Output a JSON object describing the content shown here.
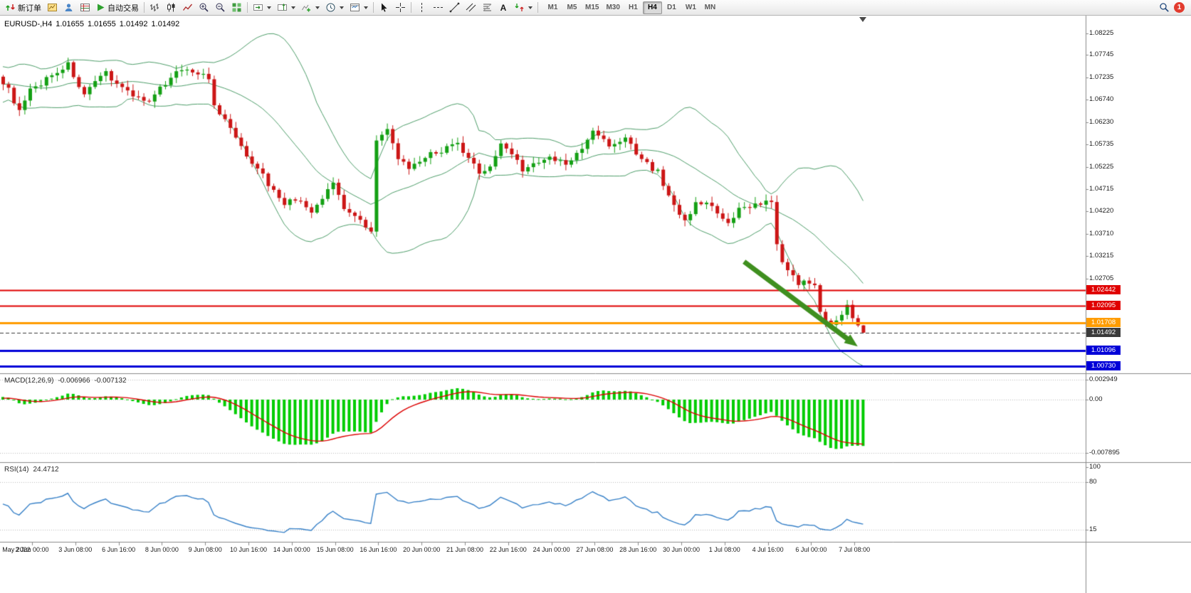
{
  "app": {
    "name": "MetaTrader"
  },
  "toolbar": {
    "new_order": "新订单",
    "auto_trading": "自动交易",
    "text_tool": "A",
    "timeframes": [
      "M1",
      "M5",
      "M15",
      "M30",
      "H1",
      "H4",
      "D1",
      "W1",
      "MN"
    ],
    "active_timeframe": "H4",
    "notification_badge": "1"
  },
  "chart": {
    "symbol_period": "EURUSD-,H4",
    "open": "1.01655",
    "high": "1.01655",
    "low": "1.01492",
    "close": "1.01492",
    "price_axis": [
      "1.08225",
      "1.07745",
      "1.07235",
      "1.06740",
      "1.06230",
      "1.05735",
      "1.05225",
      "1.04715",
      "1.04220",
      "1.03710",
      "1.03215",
      "1.02705"
    ],
    "levels": [
      {
        "label": "1.02442",
        "value": 1.02442,
        "color": "#e00000",
        "width": 2,
        "style": "solid",
        "kind": "resistance-line"
      },
      {
        "label": "1.02095",
        "value": 1.02095,
        "color": "#e00000",
        "width": 2,
        "style": "solid",
        "kind": "resistance-line"
      },
      {
        "label": "1.01708",
        "value": 1.01708,
        "color": "#ff9c00",
        "width": 3,
        "style": "solid",
        "kind": "key-level-line"
      },
      {
        "label": "1.01492",
        "value": 1.01492,
        "color": "#3a3a3a",
        "width": 1,
        "style": "dash",
        "kind": "current-price-line"
      },
      {
        "label": "1.01096",
        "value": 1.01096,
        "color": "#0000d8",
        "width": 3,
        "style": "solid",
        "kind": "support-line"
      },
      {
        "label": "1.00730",
        "value": 1.0073,
        "color": "#0000d8",
        "width": 3,
        "style": "solid",
        "kind": "support-line"
      }
    ]
  },
  "macd": {
    "name": "MACD(12,26,9)",
    "value_main": "-0.006966",
    "value_signal": "-0.007132",
    "axis": [
      "0.002949",
      "0.00",
      "-0.007895"
    ]
  },
  "rsi": {
    "name": "RSI(14)",
    "value": "24.4712",
    "axis": [
      "100",
      "80",
      "15"
    ]
  },
  "time_axis": [
    "May 2022",
    "2 Jun 00:00",
    "3 Jun 08:00",
    "6 Jun 16:00",
    "8 Jun 00:00",
    "9 Jun 08:00",
    "10 Jun 16:00",
    "14 Jun 00:00",
    "15 Jun 08:00",
    "16 Jun 16:00",
    "20 Jun 00:00",
    "21 Jun 08:00",
    "22 Jun 16:00",
    "24 Jun 00:00",
    "27 Jun 08:00",
    "28 Jun 16:00",
    "30 Jun 00:00",
    "1 Jul 08:00",
    "4 Jul 16:00",
    "6 Jul 00:00",
    "7 Jul 08:00"
  ],
  "colors": {
    "candle_up": "#14a014",
    "candle_down": "#cc1616",
    "bollinger": "#4e9e6a",
    "macd_histogram": "#00cc00",
    "macd_signal": "#dd0000",
    "rsi_line": "#3781c8",
    "grid_dotted": "#bcbcbc",
    "axis_line": "#8a8a8a",
    "arrow": "#3f8f1f"
  },
  "chart_data": {
    "type": "candlestick",
    "symbol": "EURUSD",
    "timeframe": "H4",
    "visible_price_range": [
      1.0055,
      1.0838
    ],
    "candle_count": 160,
    "last_ohlc": {
      "open": 1.01655,
      "high": 1.01655,
      "low": 1.01492,
      "close": 1.01492
    },
    "close_keyframes": [
      [
        0,
        1.0715
      ],
      [
        2,
        1.0672
      ],
      [
        3,
        1.0645
      ],
      [
        5,
        1.0692
      ],
      [
        9,
        1.073
      ],
      [
        12,
        1.0752
      ],
      [
        15,
        1.0682
      ],
      [
        19,
        1.0735
      ],
      [
        22,
        1.07
      ],
      [
        27,
        1.0665
      ],
      [
        31,
        1.0728
      ],
      [
        34,
        1.0745
      ],
      [
        38,
        1.0722
      ],
      [
        39,
        1.0655
      ],
      [
        42,
        1.061
      ],
      [
        44,
        1.0563
      ],
      [
        47,
        1.0522
      ],
      [
        49,
        1.0483
      ],
      [
        52,
        1.0442
      ],
      [
        55,
        1.0448
      ],
      [
        57,
        1.0415
      ],
      [
        61,
        1.0488
      ],
      [
        63,
        1.0432
      ],
      [
        67,
        1.0392
      ],
      [
        68,
        1.0382
      ],
      [
        69,
        1.058
      ],
      [
        71,
        1.0602
      ],
      [
        73,
        1.0545
      ],
      [
        75,
        1.0512
      ],
      [
        78,
        1.0545
      ],
      [
        81,
        1.056
      ],
      [
        84,
        1.0572
      ],
      [
        86,
        1.0537
      ],
      [
        88,
        1.0512
      ],
      [
        90,
        1.0522
      ],
      [
        92,
        1.0572
      ],
      [
        94,
        1.0555
      ],
      [
        96,
        1.0517
      ],
      [
        99,
        1.053
      ],
      [
        101,
        1.0542
      ],
      [
        104,
        1.0528
      ],
      [
        107,
        1.056
      ],
      [
        109,
        1.0606
      ],
      [
        111,
        1.058
      ],
      [
        113,
        1.057
      ],
      [
        115,
        1.0592
      ],
      [
        117,
        1.0546
      ],
      [
        119,
        1.0528
      ],
      [
        121,
        1.051
      ],
      [
        123,
        1.0455
      ],
      [
        125,
        1.042
      ],
      [
        126,
        1.0396
      ],
      [
        128,
        1.0446
      ],
      [
        130,
        1.044
      ],
      [
        132,
        1.0415
      ],
      [
        134,
        1.039
      ],
      [
        136,
        1.0425
      ],
      [
        138,
        1.0436
      ],
      [
        140,
        1.0441
      ],
      [
        142,
        1.0441
      ],
      [
        143,
        1.0342
      ],
      [
        145,
        1.0286
      ],
      [
        147,
        1.026
      ],
      [
        148,
        1.0271
      ],
      [
        150,
        1.0256
      ],
      [
        151,
        1.0192
      ],
      [
        153,
        1.017
      ],
      [
        155,
        1.0196
      ],
      [
        156,
        1.0206
      ],
      [
        158,
        1.01655
      ],
      [
        159,
        1.01492
      ]
    ],
    "indicators": [
      {
        "type": "bollinger",
        "period": 20,
        "deviation": 2
      },
      {
        "type": "macd",
        "fast": 12,
        "slow": 26,
        "signal": 9,
        "last_main": -0.006966,
        "last_signal": -0.007132,
        "scale_max": 0.002949,
        "scale_min": -0.007895
      },
      {
        "type": "rsi",
        "period": 14,
        "value": 24.4712,
        "levels": [
          80,
          15
        ]
      }
    ],
    "annotations": [
      {
        "type": "arrow",
        "direction": "down-right",
        "from_bar": 137,
        "from_price": 1.0309,
        "to_bar": 158,
        "to_price": 1.0118
      }
    ]
  }
}
